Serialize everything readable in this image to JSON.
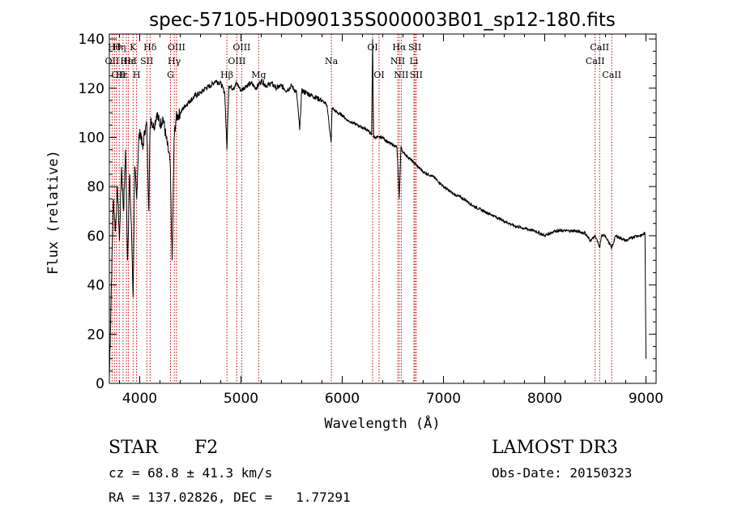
{
  "chart_data": {
    "type": "line",
    "title": "spec-57105-HD090135S000003B01_sp12-180.fits",
    "xlabel": "Wavelength (Å)",
    "ylabel": "Flux (relative)",
    "xlim": [
      3700,
      9100
    ],
    "ylim": [
      0,
      142
    ],
    "xticks": [
      4000,
      5000,
      6000,
      7000,
      8000,
      9000
    ],
    "yticks": [
      0,
      20,
      40,
      60,
      80,
      100,
      120,
      140
    ],
    "line_color": "#000000",
    "marker_color": "#cc0000",
    "series": [
      {
        "name": "flux",
        "x": [
          3700,
          3720,
          3740,
          3760,
          3780,
          3800,
          3820,
          3840,
          3860,
          3880,
          3900,
          3920,
          3935,
          3950,
          3970,
          3990,
          4010,
          4030,
          4050,
          4070,
          4090,
          4100,
          4110,
          4140,
          4170,
          4200,
          4230,
          4260,
          4300,
          4320,
          4340,
          4360,
          4400,
          4450,
          4500,
          4550,
          4600,
          4650,
          4700,
          4750,
          4800,
          4840,
          4861,
          4880,
          4920,
          4960,
          5000,
          5050,
          5100,
          5150,
          5200,
          5250,
          5300,
          5350,
          5400,
          5450,
          5500,
          5550,
          5580,
          5600,
          5650,
          5700,
          5750,
          5800,
          5850,
          5890,
          5900,
          5950,
          6000,
          6050,
          6100,
          6150,
          6200,
          6250,
          6290,
          6300,
          6310,
          6350,
          6400,
          6450,
          6500,
          6540,
          6563,
          6580,
          6600,
          6650,
          6700,
          6750,
          6800,
          6900,
          7000,
          7100,
          7200,
          7300,
          7400,
          7500,
          7600,
          7700,
          7800,
          7900,
          8000,
          8100,
          8200,
          8300,
          8400,
          8450,
          8500,
          8542,
          8560,
          8600,
          8662,
          8700,
          8750,
          8800,
          8850,
          8900,
          8950,
          8990,
          9000
        ],
        "y": [
          2,
          40,
          75,
          62,
          80,
          58,
          88,
          70,
          95,
          50,
          85,
          60,
          35,
          88,
          75,
          100,
          102,
          95,
          103,
          105,
          70,
          100,
          108,
          104,
          110,
          105,
          108,
          100,
          90,
          50,
          100,
          108,
          110,
          113,
          115,
          117,
          118,
          120,
          121,
          123,
          122,
          118,
          95,
          121,
          120,
          122,
          119,
          121,
          122,
          120,
          123,
          121,
          122,
          120,
          121,
          119,
          121,
          118,
          103,
          119,
          118,
          117,
          116,
          115,
          113,
          98,
          112,
          110,
          109,
          107,
          106,
          105,
          104,
          103,
          101,
          140,
          100,
          100,
          100,
          98,
          97,
          96,
          75,
          96,
          94,
          92,
          90,
          88,
          86,
          84,
          80,
          77,
          75,
          72,
          70,
          68,
          66,
          64,
          63,
          62,
          60,
          62,
          62,
          62,
          61,
          58,
          60,
          55,
          60,
          60,
          55,
          60,
          59,
          58,
          59,
          60,
          60,
          61,
          10
        ]
      }
    ],
    "line_markers": [
      {
        "x": 3727,
        "label": "OII",
        "row": 1
      },
      {
        "x": 3750,
        "label": "Hθ",
        "row": 0
      },
      {
        "x": 3770,
        "label": "",
        "row": 0
      },
      {
        "x": 3798,
        "label": "Hη",
        "row": 0
      },
      {
        "x": 3835,
        "label": "",
        "row": 0
      },
      {
        "x": 3869,
        "label": "",
        "row": 0
      },
      {
        "x": 3889,
        "label": "HeI",
        "row": 1
      },
      {
        "x": 3934,
        "label": "K",
        "row": 0
      },
      {
        "x": 3969,
        "label": "H",
        "row": 2
      },
      {
        "x": 4070,
        "label": "SII",
        "row": 1
      },
      {
        "x": 4102,
        "label": "Hδ",
        "row": 0
      },
      {
        "x": 4304,
        "label": "G",
        "row": 2
      },
      {
        "x": 4341,
        "label": "Hγ",
        "row": 1
      },
      {
        "x": 4363,
        "label": "OIII",
        "row": 0
      },
      {
        "x": 4861,
        "label": "Hβ",
        "row": 2
      },
      {
        "x": 4959,
        "label": "OIII",
        "row": 1
      },
      {
        "x": 5007,
        "label": "OIII",
        "row": 0
      },
      {
        "x": 5175,
        "label": "Mg",
        "row": 2
      },
      {
        "x": 5893,
        "label": "Na",
        "row": 1
      },
      {
        "x": 6300,
        "label": "OI",
        "row": 0
      },
      {
        "x": 6364,
        "label": "OI",
        "row": 2
      },
      {
        "x": 6548,
        "label": "NII",
        "row": 1
      },
      {
        "x": 6563,
        "label": "Hα",
        "row": 0
      },
      {
        "x": 6583,
        "label": "NII",
        "row": 2
      },
      {
        "x": 6708,
        "label": "Li",
        "row": 1
      },
      {
        "x": 6717,
        "label": "SII",
        "row": 0
      },
      {
        "x": 6731,
        "label": "SII",
        "row": 2
      },
      {
        "x": 8498,
        "label": "CaII",
        "row": 1
      },
      {
        "x": 8542,
        "label": "CaII",
        "row": 0
      },
      {
        "x": 8662,
        "label": "CaII",
        "row": 2
      }
    ],
    "extra_labels": [
      {
        "x": 3727,
        "label": "OII",
        "row": 2
      },
      {
        "x": 3760,
        "label": "Hε",
        "row": 2
      },
      {
        "x": 3835,
        "label": "Hε",
        "row": 1
      }
    ]
  },
  "info": {
    "object_class": "STAR",
    "subclass": "F2",
    "survey": "LAMOST DR3",
    "redshift_line": "cz = 68.8 ± 41.3 km/s",
    "obs_date_line": "Obs-Date: 20150323",
    "coords_line": "RA = 137.02826, DEC =   1.77291"
  }
}
